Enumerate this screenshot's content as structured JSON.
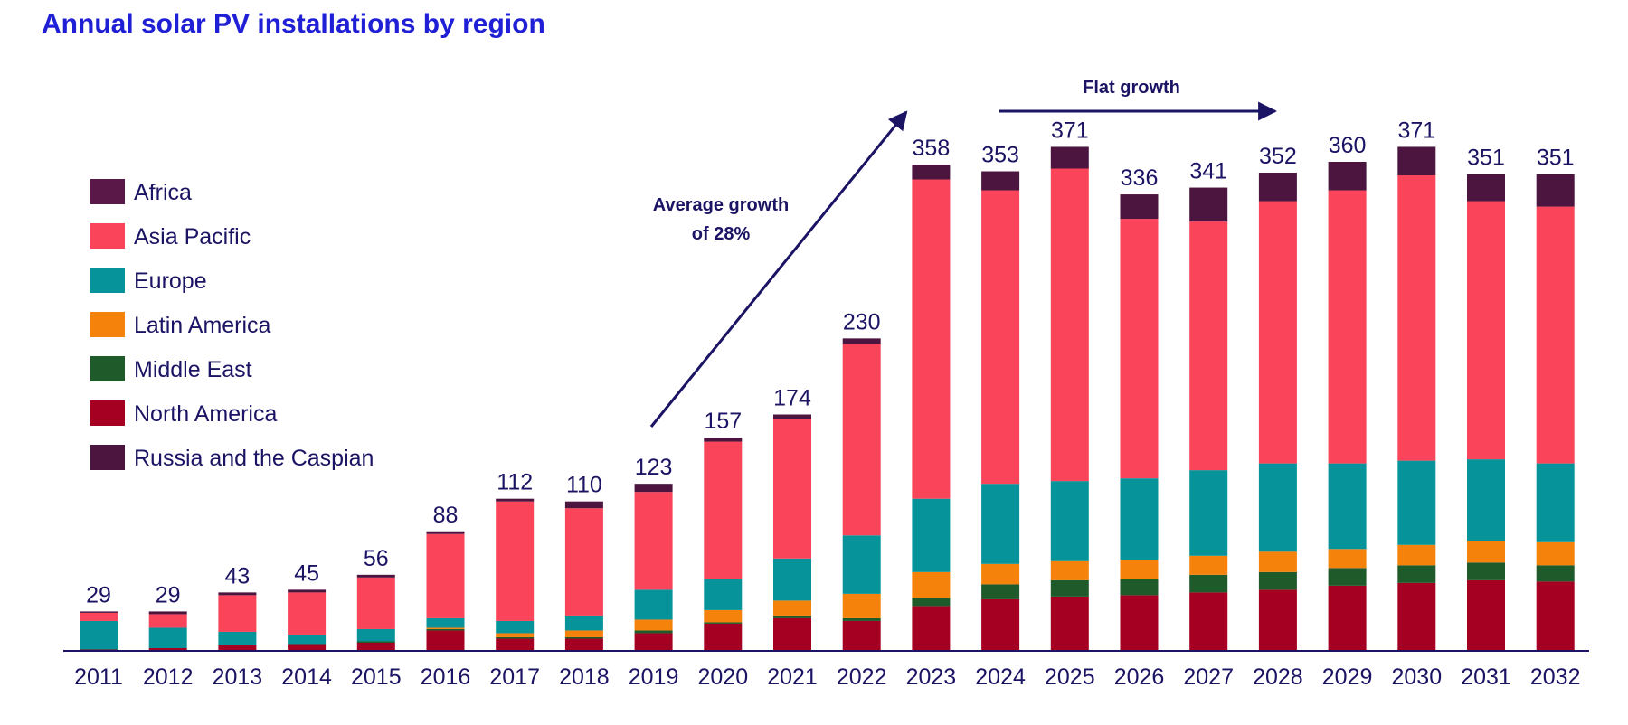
{
  "chart_data": {
    "type": "bar",
    "stacked": true,
    "title": "Annual solar PV installations by region",
    "categories": [
      "2011",
      "2012",
      "2013",
      "2014",
      "2015",
      "2016",
      "2017",
      "2018",
      "2019",
      "2020",
      "2021",
      "2022",
      "2023",
      "2024",
      "2025",
      "2026",
      "2027",
      "2028",
      "2029",
      "2030",
      "2031",
      "2032"
    ],
    "totals": [
      29,
      29,
      43,
      45,
      56,
      88,
      112,
      110,
      123,
      157,
      174,
      230,
      358,
      353,
      371,
      336,
      341,
      352,
      360,
      371,
      351,
      351
    ],
    "series": [
      {
        "name": "North America",
        "color": "#a50021",
        "values": [
          1,
          2,
          4,
          5,
          6,
          15,
          9,
          9,
          13,
          20,
          24,
          22,
          33,
          38,
          40,
          41,
          43,
          45,
          48,
          50,
          52,
          51
        ]
      },
      {
        "name": "Middle East",
        "color": "#1e5a2a",
        "values": [
          0,
          0,
          0,
          0,
          1,
          1,
          1,
          1,
          2,
          1,
          2,
          2,
          6,
          11,
          12,
          12,
          13,
          13,
          13,
          13,
          13,
          12
        ]
      },
      {
        "name": "Latin America",
        "color": "#f5820b",
        "values": [
          0,
          0,
          0,
          0,
          0,
          1,
          3,
          5,
          8,
          9,
          11,
          18,
          19,
          15,
          14,
          14,
          14,
          15,
          14,
          15,
          16,
          17
        ]
      },
      {
        "name": "Europe",
        "color": "#06949a",
        "values": [
          21,
          15,
          10,
          7,
          9,
          7,
          9,
          11,
          22,
          23,
          31,
          43,
          54,
          59,
          59,
          60,
          63,
          65,
          63,
          62,
          60,
          58
        ]
      },
      {
        "name": "Asia Pacific",
        "color": "#f9445a",
        "values": [
          6,
          10,
          27,
          31,
          38,
          62,
          88,
          79,
          72,
          101,
          103,
          141,
          235,
          216,
          230,
          191,
          183,
          193,
          201,
          210,
          190,
          189
        ]
      },
      {
        "name": "Africa",
        "color": "#5a1848",
        "values": [
          0,
          0,
          0,
          0,
          0,
          0,
          0,
          0,
          0,
          0,
          0,
          0,
          0,
          0,
          0,
          0,
          0,
          0,
          0,
          0,
          0,
          0
        ]
      },
      {
        "name": "Russia and the Caspian",
        "color": "#4b1540",
        "values": [
          1,
          2,
          2,
          2,
          2,
          2,
          2,
          5,
          6,
          3,
          3,
          4,
          11,
          14,
          16,
          18,
          25,
          21,
          21,
          21,
          20,
          24
        ]
      }
    ],
    "legend": [
      "Africa",
      "Asia Pacific",
      "Europe",
      "Latin America",
      "Middle East",
      "North America",
      "Russia and the Caspian"
    ],
    "legend_colors": [
      "#5a1848",
      "#f9445a",
      "#06949a",
      "#f5820b",
      "#1e5a2a",
      "#a50021",
      "#4b1540"
    ],
    "legend_position": "left",
    "ylim": [
      0,
      400
    ],
    "grid": false,
    "annotations": {
      "growth_line1": "Average growth",
      "growth_line2": "of 28%",
      "flat": "Flat growth"
    }
  }
}
